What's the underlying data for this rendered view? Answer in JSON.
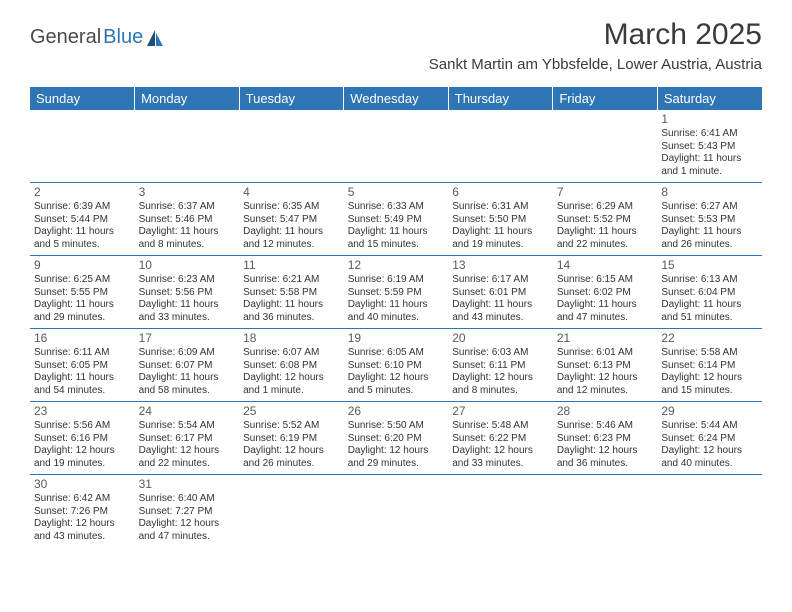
{
  "logo": {
    "text1": "General",
    "text2": "Blue"
  },
  "title": "March 2025",
  "location": "Sankt Martin am Ybbsfelde, Lower Austria, Austria",
  "colors": {
    "header_bg": "#2e75b6",
    "header_text": "#ffffff",
    "border": "#2e75b6",
    "body_text": "#333333",
    "daynum": "#5a5a5a",
    "logo_gray": "#4a4a4a",
    "logo_blue": "#2e75b6",
    "bg": "#ffffff"
  },
  "typography": {
    "title_fontsize": 30,
    "location_fontsize": 15,
    "dayheader_fontsize": 13,
    "daynum_fontsize": 12,
    "cell_fontsize": 10
  },
  "dayHeaders": [
    "Sunday",
    "Monday",
    "Tuesday",
    "Wednesday",
    "Thursday",
    "Friday",
    "Saturday"
  ],
  "weeks": [
    [
      null,
      null,
      null,
      null,
      null,
      null,
      {
        "n": "1",
        "sr": "6:41 AM",
        "ss": "5:43 PM",
        "dl": "11 hours and 1 minute."
      }
    ],
    [
      {
        "n": "2",
        "sr": "6:39 AM",
        "ss": "5:44 PM",
        "dl": "11 hours and 5 minutes."
      },
      {
        "n": "3",
        "sr": "6:37 AM",
        "ss": "5:46 PM",
        "dl": "11 hours and 8 minutes."
      },
      {
        "n": "4",
        "sr": "6:35 AM",
        "ss": "5:47 PM",
        "dl": "11 hours and 12 minutes."
      },
      {
        "n": "5",
        "sr": "6:33 AM",
        "ss": "5:49 PM",
        "dl": "11 hours and 15 minutes."
      },
      {
        "n": "6",
        "sr": "6:31 AM",
        "ss": "5:50 PM",
        "dl": "11 hours and 19 minutes."
      },
      {
        "n": "7",
        "sr": "6:29 AM",
        "ss": "5:52 PM",
        "dl": "11 hours and 22 minutes."
      },
      {
        "n": "8",
        "sr": "6:27 AM",
        "ss": "5:53 PM",
        "dl": "11 hours and 26 minutes."
      }
    ],
    [
      {
        "n": "9",
        "sr": "6:25 AM",
        "ss": "5:55 PM",
        "dl": "11 hours and 29 minutes."
      },
      {
        "n": "10",
        "sr": "6:23 AM",
        "ss": "5:56 PM",
        "dl": "11 hours and 33 minutes."
      },
      {
        "n": "11",
        "sr": "6:21 AM",
        "ss": "5:58 PM",
        "dl": "11 hours and 36 minutes."
      },
      {
        "n": "12",
        "sr": "6:19 AM",
        "ss": "5:59 PM",
        "dl": "11 hours and 40 minutes."
      },
      {
        "n": "13",
        "sr": "6:17 AM",
        "ss": "6:01 PM",
        "dl": "11 hours and 43 minutes."
      },
      {
        "n": "14",
        "sr": "6:15 AM",
        "ss": "6:02 PM",
        "dl": "11 hours and 47 minutes."
      },
      {
        "n": "15",
        "sr": "6:13 AM",
        "ss": "6:04 PM",
        "dl": "11 hours and 51 minutes."
      }
    ],
    [
      {
        "n": "16",
        "sr": "6:11 AM",
        "ss": "6:05 PM",
        "dl": "11 hours and 54 minutes."
      },
      {
        "n": "17",
        "sr": "6:09 AM",
        "ss": "6:07 PM",
        "dl": "11 hours and 58 minutes."
      },
      {
        "n": "18",
        "sr": "6:07 AM",
        "ss": "6:08 PM",
        "dl": "12 hours and 1 minute."
      },
      {
        "n": "19",
        "sr": "6:05 AM",
        "ss": "6:10 PM",
        "dl": "12 hours and 5 minutes."
      },
      {
        "n": "20",
        "sr": "6:03 AM",
        "ss": "6:11 PM",
        "dl": "12 hours and 8 minutes."
      },
      {
        "n": "21",
        "sr": "6:01 AM",
        "ss": "6:13 PM",
        "dl": "12 hours and 12 minutes."
      },
      {
        "n": "22",
        "sr": "5:58 AM",
        "ss": "6:14 PM",
        "dl": "12 hours and 15 minutes."
      }
    ],
    [
      {
        "n": "23",
        "sr": "5:56 AM",
        "ss": "6:16 PM",
        "dl": "12 hours and 19 minutes."
      },
      {
        "n": "24",
        "sr": "5:54 AM",
        "ss": "6:17 PM",
        "dl": "12 hours and 22 minutes."
      },
      {
        "n": "25",
        "sr": "5:52 AM",
        "ss": "6:19 PM",
        "dl": "12 hours and 26 minutes."
      },
      {
        "n": "26",
        "sr": "5:50 AM",
        "ss": "6:20 PM",
        "dl": "12 hours and 29 minutes."
      },
      {
        "n": "27",
        "sr": "5:48 AM",
        "ss": "6:22 PM",
        "dl": "12 hours and 33 minutes."
      },
      {
        "n": "28",
        "sr": "5:46 AM",
        "ss": "6:23 PM",
        "dl": "12 hours and 36 minutes."
      },
      {
        "n": "29",
        "sr": "5:44 AM",
        "ss": "6:24 PM",
        "dl": "12 hours and 40 minutes."
      }
    ],
    [
      {
        "n": "30",
        "sr": "6:42 AM",
        "ss": "7:26 PM",
        "dl": "12 hours and 43 minutes."
      },
      {
        "n": "31",
        "sr": "6:40 AM",
        "ss": "7:27 PM",
        "dl": "12 hours and 47 minutes."
      },
      null,
      null,
      null,
      null,
      null
    ]
  ],
  "labels": {
    "sunrise": "Sunrise: ",
    "sunset": "Sunset: ",
    "daylight": "Daylight: "
  }
}
